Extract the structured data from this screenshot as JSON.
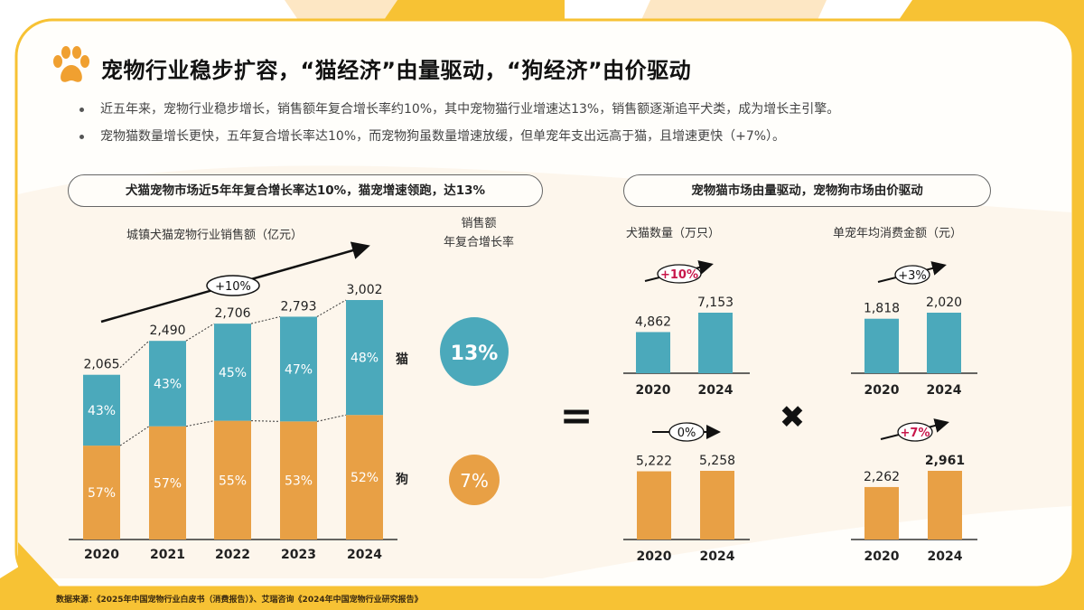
{
  "title": "宠物行业稳步扩容，“猫经济”由量驱动，“狗经济”由价驱动",
  "bullets": [
    "近五年来，宠物行业稳步增长，销售额年复合增长率约10%，其中宠物猫行业增速达13%，销售额逐渐追平犬类，成为增长主引擎。",
    "宠物猫数量增长更快，五年复合增长率达10%，而宠物狗虽数量增速放缓，但单宠年支出远高于猫，且增速更快（+7%）。"
  ],
  "left_panel": {
    "header": "犬猫宠物市场近5年年复合增长率达10%，猫宠增速领跑，达13%",
    "chart_title": "城镇犬猫宠物行业销售额（亿元）",
    "cagr_title_line1": "销售额",
    "cagr_title_line2": "年复合增长率",
    "legend_cat": "猫",
    "legend_dog": "狗",
    "cagr_cat": "13%",
    "cagr_dog": "7%",
    "trend_label": "+10%"
  },
  "right_panel": {
    "header": "宠物猫市场由量驱动，宠物狗市场由价驱动",
    "count_title": "犬猫数量（万只）",
    "price_title": "单宠年均消费金额（元）"
  },
  "operators": {
    "equals": "=",
    "times": "✖"
  },
  "source": "数据来源：《2025年中国宠物行业白皮书（消费报告）》、艾瑞咨询《2024年中国宠物行业研究报告》",
  "colors": {
    "cat": "#4BA9BB",
    "dog": "#E8A045",
    "highlight": "#C8174B",
    "frame": "#F7C234"
  },
  "chart_data": [
    {
      "type": "bar",
      "stacked": true,
      "title": "城镇犬猫宠物行业销售额（亿元）",
      "categories": [
        "2020",
        "2021",
        "2022",
        "2023",
        "2024"
      ],
      "totals": [
        2065,
        2490,
        2706,
        2793,
        3002
      ],
      "total_labels": [
        "2,065",
        "2,490",
        "2,706",
        "2,793",
        "3,002"
      ],
      "series": [
        {
          "name": "狗",
          "share_pct": [
            57,
            57,
            55,
            53,
            52
          ],
          "labels": [
            "57%",
            "57%",
            "55%",
            "53%",
            "52%"
          ],
          "color": "#E8A045"
        },
        {
          "name": "猫",
          "share_pct": [
            43,
            43,
            45,
            47,
            48
          ],
          "labels": [
            "43%",
            "43%",
            "45%",
            "47%",
            "48%"
          ],
          "color": "#4BA9BB"
        }
      ],
      "grid": false
    },
    {
      "type": "bar",
      "subject": "猫",
      "metric": "犬猫数量（万只）",
      "categories": [
        "2020",
        "2024"
      ],
      "values": [
        4862,
        7153
      ],
      "labels": [
        "4,862",
        "7,153"
      ],
      "growth_label": "+10%",
      "growth_highlight": true,
      "color": "#4BA9BB"
    },
    {
      "type": "bar",
      "subject": "狗",
      "metric": "犬猫数量（万只）",
      "categories": [
        "2020",
        "2024"
      ],
      "values": [
        5222,
        5258
      ],
      "labels": [
        "5,222",
        "5,258"
      ],
      "growth_label": "0%",
      "growth_highlight": false,
      "color": "#E8A045"
    },
    {
      "type": "bar",
      "subject": "猫",
      "metric": "单宠年均消费金额（元）",
      "categories": [
        "2020",
        "2024"
      ],
      "values": [
        1818,
        2020
      ],
      "labels": [
        "1,818",
        "2,020"
      ],
      "growth_label": "+3%",
      "growth_highlight": false,
      "color": "#4BA9BB"
    },
    {
      "type": "bar",
      "subject": "狗",
      "metric": "单宠年均消费金额（元）",
      "categories": [
        "2020",
        "2024"
      ],
      "values": [
        2262,
        2961
      ],
      "labels": [
        "2,262",
        "2,961"
      ],
      "growth_label": "+7%",
      "growth_highlight": true,
      "color": "#E8A045"
    }
  ]
}
